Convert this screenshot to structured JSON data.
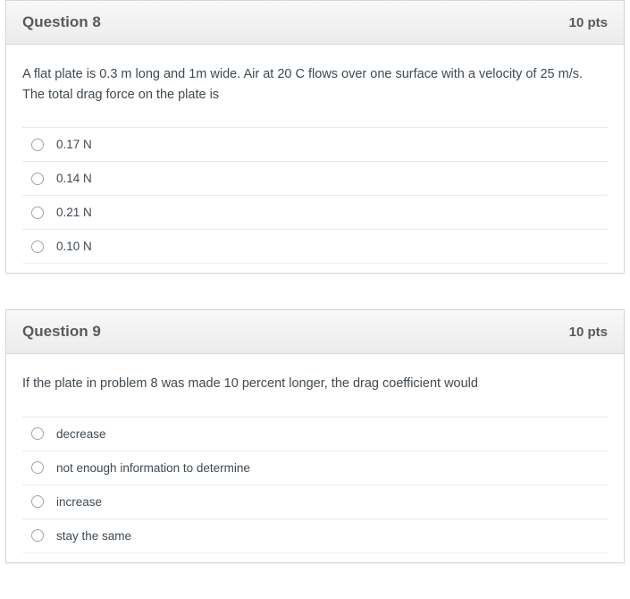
{
  "questions": [
    {
      "title": "Question 8",
      "points": "10 pts",
      "prompt": "A flat plate is 0.3 m long and 1m wide. Air at 20 C flows over one surface with a velocity of 25 m/s. The total drag force on the plate is",
      "options": [
        "0.17 N",
        "0.14 N",
        "0.21 N",
        "0.10 N"
      ]
    },
    {
      "title": "Question 9",
      "points": "10 pts",
      "prompt": "If the plate in problem 8 was made 10 percent longer, the drag coefficient would",
      "options": [
        "decrease",
        "not enough information to determine",
        "increase",
        "stay the same"
      ]
    }
  ],
  "colors": {
    "header_gradient_top": "#f8f8f8",
    "header_gradient_bottom": "#ececec",
    "border": "#d7d7d7",
    "text_primary": "#3f4a52",
    "title_text": "#5a5a5a",
    "divider": "#e8e8e8",
    "radio_border": "#9fa5aa"
  },
  "typography": {
    "title_fontsize": 17,
    "points_fontsize": 15,
    "prompt_fontsize": 14.5,
    "option_fontsize": 13.5,
    "font_family": "Helvetica Neue, Helvetica, Arial, sans-serif"
  }
}
